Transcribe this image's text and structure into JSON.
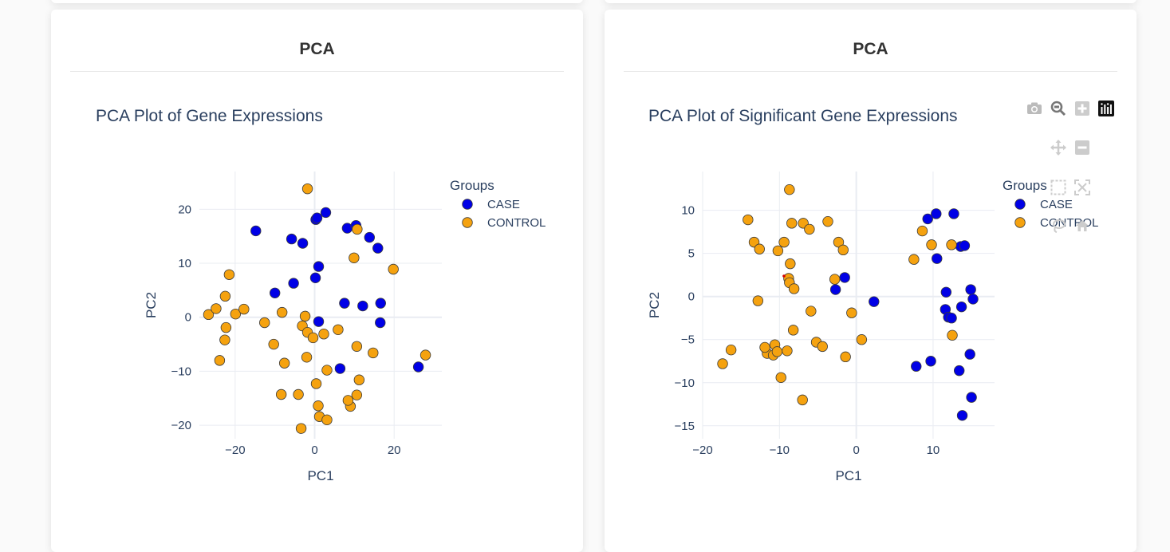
{
  "cards": [
    {
      "header": "PCA",
      "chart_data": {
        "type": "scatter",
        "title": "PCA Plot of Gene Expressions",
        "xlabel": "PC1",
        "ylabel": "PC2",
        "xlim": [
          -29,
          32
        ],
        "ylim": [
          -22.5,
          27
        ],
        "xticks": [
          -20,
          0,
          20
        ],
        "yticks": [
          -20,
          -10,
          0,
          10,
          20
        ],
        "grid": true,
        "legend_title": "Groups",
        "legend_position": "top-right",
        "series": [
          {
            "name": "CASE",
            "color": "#0000e6",
            "x": [
              -14.8,
              -5.8,
              -3,
              0.3,
              0.6,
              2.8,
              -10,
              -5.3,
              0.2,
              1,
              8.2,
              10.4,
              13.8,
              15.9,
              7.5,
              12.1,
              16.6,
              16.5,
              1,
              6.4,
              26.1
            ],
            "y": [
              16,
              14.5,
              13.7,
              18.1,
              18.4,
              19.4,
              4.5,
              6.3,
              7.3,
              9.4,
              16.5,
              17,
              14.8,
              12.8,
              2.6,
              2.1,
              2.6,
              -1,
              -0.8,
              -9.5,
              -9.2
            ]
          },
          {
            "name": "CONTROL",
            "color": "#f5a20f",
            "x": [
              -1.8,
              -21.5,
              -22.5,
              -26.7,
              -24.8,
              -19.9,
              -17.8,
              -22.3,
              -22.6,
              -23.9,
              -12.6,
              -10.3,
              -7.6,
              -8.2,
              -2.4,
              -3.1,
              -1.8,
              -2,
              -0.4,
              2.3,
              5.9,
              10.6,
              14.7,
              3.1,
              0.4,
              11.2,
              10.6,
              9,
              -8.4,
              -4.1,
              0.9,
              1.2,
              3.1,
              -3.4,
              8.4,
              10.7,
              9.9,
              19.8,
              27.9
            ],
            "y": [
              23.8,
              7.9,
              3.9,
              0.5,
              1.6,
              0.6,
              1.5,
              -1.9,
              -4.2,
              -8,
              -1,
              -5,
              -8.5,
              0.9,
              0.2,
              -1.6,
              -2.8,
              -7.4,
              -3.8,
              -3.1,
              -2.3,
              -5.4,
              -6.6,
              -9.8,
              -12.3,
              -11.6,
              -14.4,
              -16.5,
              -14.3,
              -14.3,
              -16.4,
              -18.4,
              -19,
              -20.6,
              -15.4,
              16.3,
              11,
              8.9,
              -7
            ]
          }
        ]
      }
    },
    {
      "header": "PCA",
      "chart_data": {
        "type": "scatter",
        "title": "PCA Plot of Significant Gene Expressions",
        "xlabel": "PC1",
        "ylabel": "PC2",
        "xlim": [
          -20,
          18
        ],
        "ylim": [
          -16.5,
          14.5
        ],
        "xticks": [
          -20,
          -10,
          0,
          10
        ],
        "yticks": [
          -15,
          -10,
          -5,
          0,
          5,
          10
        ],
        "grid": true,
        "legend_title": "Groups",
        "legend_position": "top-right",
        "series": [
          {
            "name": "CASE",
            "color": "#0000e6",
            "x": [
              9.3,
              10.4,
              12.7,
              13.6,
              14.1,
              10.5,
              -1.5,
              -2.7,
              2.3,
              11.7,
              14.9,
              15.2,
              11.6,
              12,
              12.4,
              13.7,
              14.8,
              7.8,
              9.7,
              13.4,
              15,
              13.8
            ],
            "y": [
              9,
              9.6,
              9.6,
              5.8,
              5.9,
              4.4,
              2.2,
              0.8,
              -0.6,
              0.5,
              0.8,
              -0.3,
              -1.5,
              -2.4,
              -2.5,
              -1.2,
              -6.7,
              -8.1,
              -7.5,
              -8.6,
              -11.7,
              -13.8
            ]
          },
          {
            "name": "CONTROL",
            "color": "#f5a20f",
            "x": [
              -8.7,
              -14.1,
              -8.4,
              -6.9,
              -6.1,
              -3.7,
              -13.3,
              -12.6,
              -9.4,
              -10.2,
              -8.6,
              -2.3,
              -1.7,
              -2.8,
              -8.8,
              -8.7,
              -8.1,
              -12.8,
              -5.9,
              -8.2,
              -0.6,
              -1.4,
              -9,
              -5.2,
              -4.4,
              0.7,
              -16.3,
              -17.4,
              -11.6,
              -11.9,
              -10.8,
              -10.6,
              -10.3,
              -9.8,
              -7,
              7.5,
              8.6,
              9.8,
              12.4,
              12.5
            ],
            "y": [
              12.4,
              8.9,
              8.5,
              8.5,
              7.8,
              8.7,
              6.3,
              5.5,
              6.3,
              5.3,
              3.8,
              6.3,
              5.4,
              2,
              2.1,
              1.6,
              0.9,
              -0.5,
              -1.7,
              -3.9,
              -1.9,
              -7,
              -6.3,
              -5.3,
              -5.8,
              -5,
              -6.2,
              -7.8,
              -6.6,
              -5.9,
              -6.8,
              -5.6,
              -6.4,
              -9.4,
              -12,
              4.3,
              7.6,
              6,
              6,
              -4.5
            ]
          }
        ]
      }
    }
  ],
  "modebar": {
    "buttons": [
      {
        "name": "download-plot-icon",
        "active": false
      },
      {
        "name": "zoom-icon",
        "active": false
      },
      {
        "name": "zoom-in-icon",
        "active": false
      },
      {
        "name": "plotly-logo-icon",
        "active": true
      },
      {
        "name": "pan-icon",
        "active": false
      },
      {
        "name": "zoom-out-icon",
        "active": false
      },
      {
        "name": "box-select-icon",
        "active": false
      },
      {
        "name": "autoscale-icon",
        "active": false
      },
      {
        "name": "lasso-select-icon",
        "active": false
      },
      {
        "name": "reset-axes-icon",
        "active": false
      }
    ]
  }
}
